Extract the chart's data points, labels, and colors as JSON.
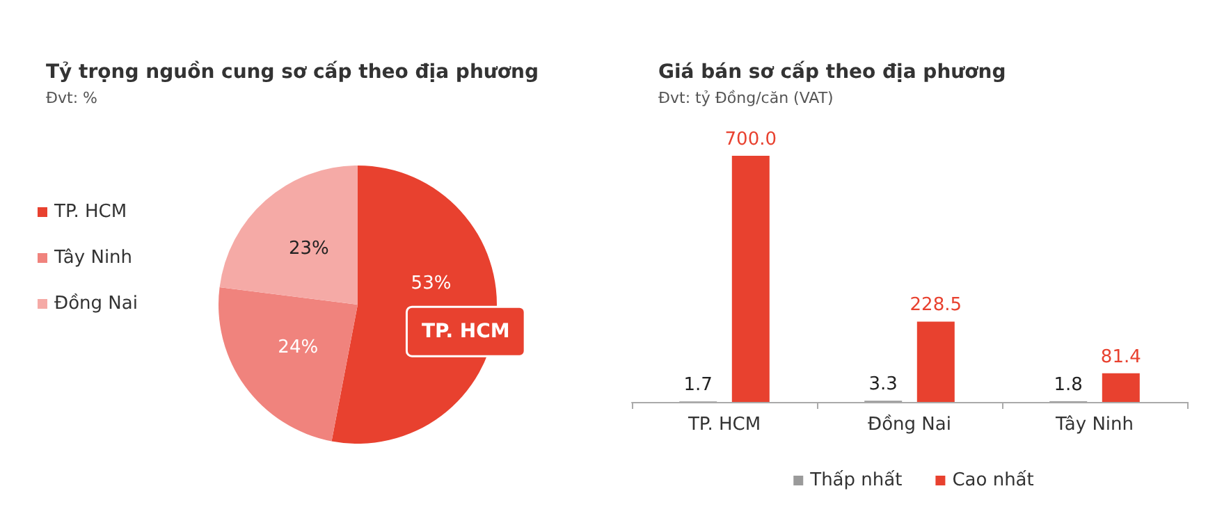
{
  "chart_data": [
    {
      "type": "pie",
      "title": "Tỷ trọng nguồn cung sơ cấp theo địa phương",
      "subtitle": "Đvt: %",
      "categories": [
        "TP. HCM",
        "Tây Ninh",
        "Đồng Nai"
      ],
      "values": [
        53,
        24,
        23
      ],
      "colors": [
        "#e8412f",
        "#f0837d",
        "#f5aaa6"
      ],
      "legend": "left",
      "value_labels": [
        "53%",
        "24%",
        "23%"
      ],
      "annotations": [
        {
          "text": "TP. HCM",
          "x": "TP. HCM"
        }
      ]
    },
    {
      "type": "bar",
      "title": "Giá bán sơ cấp theo địa phương",
      "subtitle": "Đvt: tỷ Đồng/căn (VAT)",
      "categories": [
        "TP. HCM",
        "Đồng Nai",
        "Tây Ninh"
      ],
      "legend": "bottom",
      "ylim": [
        0,
        700
      ],
      "tick_labels": "x",
      "series": [
        {
          "name": "Thấp nhất",
          "color": "#9a9a9a",
          "values": [
            1.7,
            3.3,
            1.8
          ],
          "value_labels": [
            "1.7",
            "3.3",
            "1.8"
          ]
        },
        {
          "name": "Cao nhất",
          "color": "#e8412f",
          "values": [
            700.0,
            228.5,
            81.4
          ],
          "value_labels": [
            "700.0",
            "228.5",
            "81.4"
          ]
        }
      ]
    }
  ]
}
